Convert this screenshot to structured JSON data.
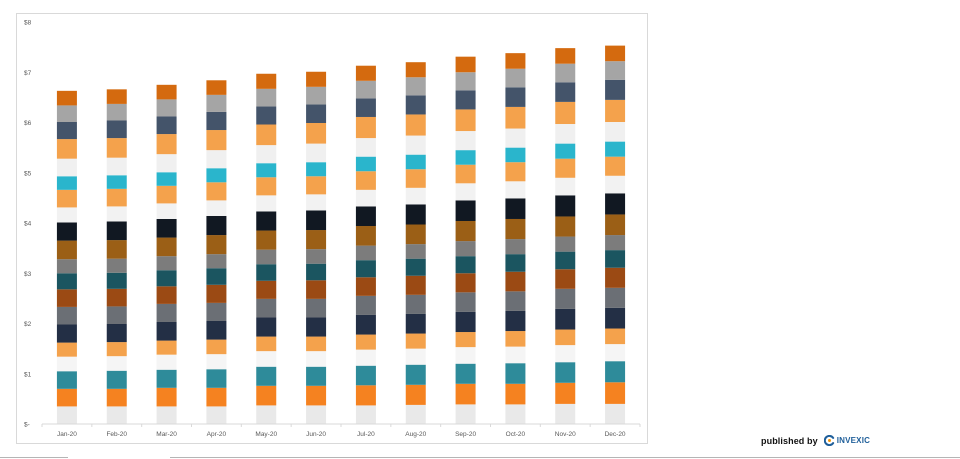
{
  "chart_data": {
    "type": "bar",
    "stacked": true,
    "title": "",
    "xlabel": "",
    "ylabel": "",
    "ylim": [
      0,
      8
    ],
    "ytick_labels": [
      "$-",
      "$1",
      "$2",
      "$3",
      "$4",
      "$5",
      "$6",
      "$7",
      "$8"
    ],
    "grid": false,
    "legend": "none",
    "categories": [
      "Jan-20",
      "Feb-20",
      "Mar-20",
      "Apr-20",
      "May-20",
      "Jun-20",
      "Jul-20",
      "Aug-20",
      "Sep-20",
      "Oct-20",
      "Nov-20",
      "Dec-20"
    ],
    "segment_colors": [
      "#e9e9e9",
      "#f58220",
      "#2e8b9a",
      "#f5f5f5",
      "#f4a24c",
      "#232f45",
      "#6b6f75",
      "#9b4a14",
      "#1b5560",
      "#7c7c7c",
      "#9b5f16",
      "#111822",
      "#f2f2f2",
      "#f4a24c",
      "#2ab5cc",
      "#f0f0f0",
      "#f4a24c",
      "#44546a",
      "#a5a5a5",
      "#d46a0f"
    ],
    "series": [
      {
        "values": [
          0.35,
          0.35,
          0.35,
          0.35,
          0.37,
          0.37,
          0.37,
          0.38,
          0.39,
          0.39,
          0.4,
          0.4
        ]
      },
      {
        "values": [
          0.35,
          0.35,
          0.37,
          0.37,
          0.39,
          0.39,
          0.4,
          0.4,
          0.41,
          0.41,
          0.42,
          0.43
        ]
      },
      {
        "values": [
          0.35,
          0.36,
          0.36,
          0.37,
          0.38,
          0.38,
          0.39,
          0.4,
          0.4,
          0.41,
          0.41,
          0.42
        ]
      },
      {
        "values": [
          0.29,
          0.29,
          0.3,
          0.3,
          0.31,
          0.31,
          0.32,
          0.32,
          0.33,
          0.33,
          0.34,
          0.34
        ]
      },
      {
        "values": [
          0.28,
          0.28,
          0.28,
          0.29,
          0.29,
          0.29,
          0.3,
          0.3,
          0.3,
          0.31,
          0.31,
          0.31
        ]
      },
      {
        "values": [
          0.36,
          0.36,
          0.37,
          0.37,
          0.38,
          0.38,
          0.39,
          0.39,
          0.4,
          0.4,
          0.41,
          0.41
        ]
      },
      {
        "values": [
          0.35,
          0.35,
          0.36,
          0.36,
          0.37,
          0.37,
          0.38,
          0.38,
          0.39,
          0.39,
          0.4,
          0.4
        ]
      },
      {
        "values": [
          0.35,
          0.35,
          0.35,
          0.36,
          0.36,
          0.37,
          0.37,
          0.38,
          0.38,
          0.39,
          0.39,
          0.4
        ]
      },
      {
        "values": [
          0.32,
          0.32,
          0.32,
          0.33,
          0.33,
          0.33,
          0.34,
          0.34,
          0.34,
          0.35,
          0.35,
          0.35
        ]
      },
      {
        "values": [
          0.28,
          0.28,
          0.28,
          0.28,
          0.29,
          0.29,
          0.29,
          0.29,
          0.3,
          0.3,
          0.3,
          0.3
        ]
      },
      {
        "values": [
          0.37,
          0.37,
          0.37,
          0.38,
          0.38,
          0.38,
          0.39,
          0.39,
          0.4,
          0.4,
          0.4,
          0.41
        ]
      },
      {
        "values": [
          0.36,
          0.37,
          0.37,
          0.38,
          0.38,
          0.39,
          0.39,
          0.4,
          0.41,
          0.41,
          0.42,
          0.42
        ]
      },
      {
        "values": [
          0.3,
          0.3,
          0.31,
          0.31,
          0.32,
          0.32,
          0.33,
          0.33,
          0.34,
          0.34,
          0.35,
          0.35
        ]
      },
      {
        "values": [
          0.35,
          0.35,
          0.35,
          0.36,
          0.36,
          0.36,
          0.37,
          0.37,
          0.37,
          0.38,
          0.38,
          0.38
        ]
      },
      {
        "values": [
          0.27,
          0.27,
          0.27,
          0.28,
          0.28,
          0.28,
          0.29,
          0.29,
          0.29,
          0.29,
          0.3,
          0.3
        ]
      },
      {
        "values": [
          0.35,
          0.35,
          0.36,
          0.36,
          0.36,
          0.37,
          0.37,
          0.38,
          0.38,
          0.38,
          0.39,
          0.39
        ]
      },
      {
        "values": [
          0.39,
          0.39,
          0.4,
          0.4,
          0.41,
          0.41,
          0.42,
          0.42,
          0.43,
          0.43,
          0.44,
          0.44
        ]
      },
      {
        "values": [
          0.34,
          0.35,
          0.35,
          0.36,
          0.36,
          0.37,
          0.37,
          0.38,
          0.38,
          0.39,
          0.39,
          0.4
        ]
      },
      {
        "values": [
          0.33,
          0.33,
          0.34,
          0.34,
          0.35,
          0.35,
          0.35,
          0.36,
          0.36,
          0.37,
          0.37,
          0.37
        ]
      },
      {
        "values": [
          0.29,
          0.29,
          0.29,
          0.29,
          0.3,
          0.3,
          0.3,
          0.3,
          0.31,
          0.31,
          0.31,
          0.31
        ]
      }
    ]
  },
  "footer": {
    "published_by": "published by",
    "logo_name": "INVEXIC"
  },
  "icons": {
    "logo_mark": "invexic-logo-icon"
  }
}
